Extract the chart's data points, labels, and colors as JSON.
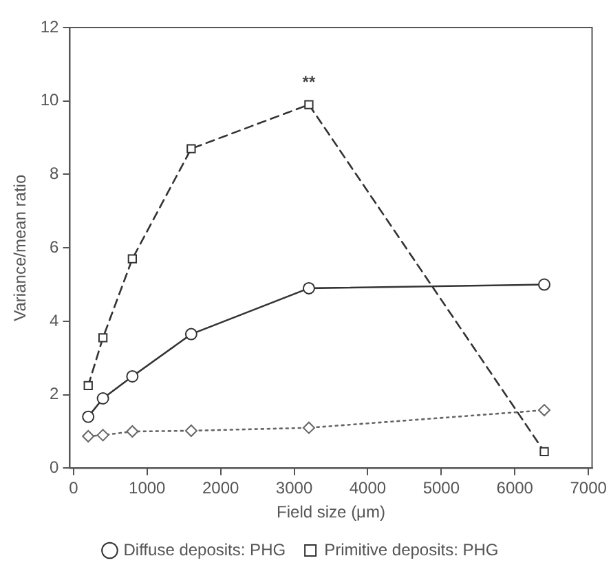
{
  "chart_data": {
    "type": "line",
    "xlabel": "Field size (μm)",
    "ylabel": "Variance/mean ratio",
    "x": [
      200,
      400,
      800,
      1600,
      3200,
      6400
    ],
    "series": [
      {
        "name": "Diffuse deposits: PHG",
        "color": "#333333",
        "marker": "circle",
        "line_style": "solid",
        "values": [
          1.4,
          1.9,
          2.5,
          3.65,
          4.9,
          5.0
        ]
      },
      {
        "name": "Primitive deposits: PHG",
        "color": "#333333",
        "marker": "square",
        "line_style": "dashed",
        "values": [
          2.25,
          3.55,
          5.7,
          8.7,
          9.9,
          0.45
        ]
      },
      {
        "color": "#666666",
        "marker": "diamond",
        "line_style": "dotted",
        "values": [
          0.87,
          0.9,
          1.0,
          1.02,
          1.1,
          1.58
        ]
      }
    ],
    "xlim": [
      -50,
      7050
    ],
    "xticks": [
      0,
      1000,
      2000,
      3000,
      4000,
      5000,
      6000,
      7000
    ],
    "ylim": [
      0,
      12
    ],
    "yticks": [
      0,
      2,
      4,
      6,
      8,
      10,
      12
    ],
    "grid": false,
    "legend": "bottom",
    "annotations": [
      {
        "text": "**",
        "x": 3200,
        "y": 9.9
      }
    ]
  }
}
